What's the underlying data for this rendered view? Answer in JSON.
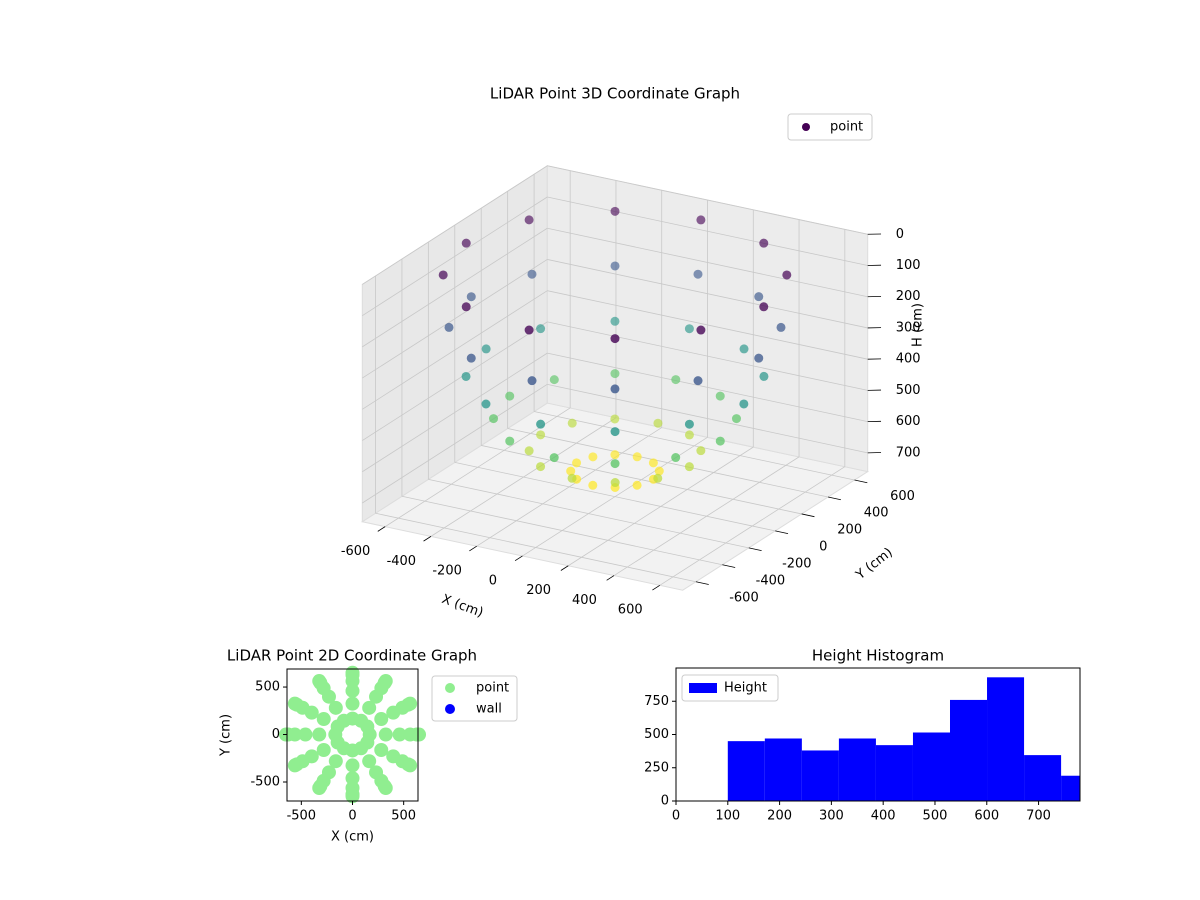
{
  "chart_data": [
    {
      "type": "scatter3d",
      "title": "LiDAR Point 3D Coordinate Graph",
      "x_label": "X (cm)",
      "y_label": "Y (cm)",
      "z_label": "H (cm)",
      "xlim": [
        -700,
        700
      ],
      "ylim": [
        -700,
        700
      ],
      "zlim": [
        760,
        0
      ],
      "xticks": [
        -600,
        -400,
        -200,
        0,
        200,
        400,
        600
      ],
      "yticks": [
        -600,
        -400,
        -200,
        0,
        200,
        400,
        600
      ],
      "zticks": [
        0,
        100,
        200,
        300,
        400,
        500,
        600,
        700
      ],
      "grid": true,
      "legend": "upper right",
      "series": [
        {
          "name": "point",
          "colormap": "viridis",
          "x": [
            168,
            325,
            460,
            563,
            628,
            650,
            145,
            281,
            398,
            488,
            544,
            563,
            84,
            163,
            230,
            282,
            314,
            325,
            0,
            0,
            0,
            0,
            0,
            0,
            -84,
            -163,
            -230,
            -282,
            -314,
            -325,
            -145,
            -281,
            -398,
            -488,
            -544,
            -563,
            -168,
            -325,
            -460,
            -563,
            -628,
            -650,
            -145,
            -281,
            -398,
            -488,
            -544,
            -563,
            -84,
            -163,
            -230,
            -282,
            -314,
            -325,
            0,
            0,
            0,
            0,
            0,
            0,
            84,
            163,
            230,
            282,
            314,
            325,
            145,
            281,
            398,
            488,
            544,
            563
          ],
          "y": [
            0,
            0,
            0,
            0,
            0,
            0,
            84,
            163,
            230,
            282,
            314,
            325,
            145,
            281,
            398,
            488,
            544,
            563,
            168,
            325,
            460,
            563,
            628,
            650,
            145,
            281,
            398,
            488,
            544,
            563,
            84,
            163,
            230,
            282,
            314,
            325,
            0,
            0,
            0,
            0,
            0,
            0,
            -84,
            -163,
            -230,
            -282,
            -314,
            -325,
            -145,
            -281,
            -398,
            -488,
            -544,
            -563,
            -168,
            -325,
            -460,
            -563,
            -628,
            -650,
            -145,
            -281,
            -398,
            -488,
            -544,
            -563,
            -84,
            -163,
            -230,
            -282,
            -314,
            -325
          ],
          "z": [
            678,
            613,
            510,
            375,
            218,
            50,
            678,
            613,
            510,
            375,
            218,
            50,
            678,
            613,
            510,
            375,
            218,
            50,
            678,
            613,
            510,
            375,
            218,
            50,
            678,
            613,
            510,
            375,
            218,
            50,
            678,
            613,
            510,
            375,
            218,
            50,
            678,
            613,
            510,
            375,
            218,
            50,
            678,
            613,
            510,
            375,
            218,
            50,
            678,
            613,
            510,
            375,
            218,
            50,
            678,
            613,
            510,
            375,
            218,
            50,
            678,
            613,
            510,
            375,
            218,
            50,
            678,
            613,
            510,
            375,
            218,
            50
          ]
        }
      ]
    },
    {
      "type": "scatter",
      "title": "LiDAR Point 2D Coordinate Graph",
      "x_label": "X (cm)",
      "y_label": "Y (cm)",
      "xlim": [
        -640,
        640
      ],
      "ylim": [
        -700,
        690
      ],
      "xticks": [
        -500,
        0,
        500
      ],
      "yticks": [
        -500,
        0,
        500
      ],
      "legend": "outside right",
      "series": [
        {
          "name": "point",
          "color": "#90ee90",
          "x": [
            168,
            325,
            460,
            563,
            628,
            650,
            145,
            281,
            398,
            488,
            544,
            563,
            84,
            163,
            230,
            282,
            314,
            325,
            0,
            0,
            0,
            0,
            0,
            0,
            -84,
            -163,
            -230,
            -282,
            -314,
            -325,
            -145,
            -281,
            -398,
            -488,
            -544,
            -563,
            -168,
            -325,
            -460,
            -563,
            -628,
            -650,
            -145,
            -281,
            -398,
            -488,
            -544,
            -563,
            -84,
            -163,
            -230,
            -282,
            -314,
            -325,
            0,
            0,
            0,
            0,
            0,
            0,
            84,
            163,
            230,
            282,
            314,
            325,
            145,
            281,
            398,
            488,
            544,
            563
          ],
          "y": [
            0,
            0,
            0,
            0,
            0,
            0,
            84,
            163,
            230,
            282,
            314,
            325,
            145,
            281,
            398,
            488,
            544,
            563,
            168,
            325,
            460,
            563,
            628,
            650,
            145,
            281,
            398,
            488,
            544,
            563,
            84,
            163,
            230,
            282,
            314,
            325,
            0,
            0,
            0,
            0,
            0,
            0,
            -84,
            -163,
            -230,
            -282,
            -314,
            -325,
            -145,
            -281,
            -398,
            -488,
            -544,
            -563,
            -168,
            -325,
            -460,
            -563,
            -628,
            -650,
            -145,
            -281,
            -398,
            -488,
            -544,
            -563,
            -84,
            -163,
            -230,
            -282,
            -314,
            -325
          ]
        },
        {
          "name": "wall",
          "color": "#0000ff",
          "x": [],
          "y": []
        }
      ]
    },
    {
      "type": "histogram",
      "title": "Height Histogram",
      "bins": [
        100,
        171.5,
        243,
        314.5,
        386,
        457.5,
        529,
        600.5,
        672,
        743.5,
        815
      ],
      "series": [
        {
          "name": "Height",
          "color": "#0000ff",
          "values": [
            450,
            470,
            380,
            470,
            420,
            515,
            760,
            930,
            345,
            190
          ]
        }
      ],
      "xlim": [
        0,
        780
      ],
      "ylim": [
        0,
        1000
      ],
      "xticks": [
        0,
        100,
        200,
        300,
        400,
        500,
        600,
        700
      ],
      "yticks": [
        0,
        250,
        500,
        750
      ],
      "legend": "upper left"
    }
  ]
}
